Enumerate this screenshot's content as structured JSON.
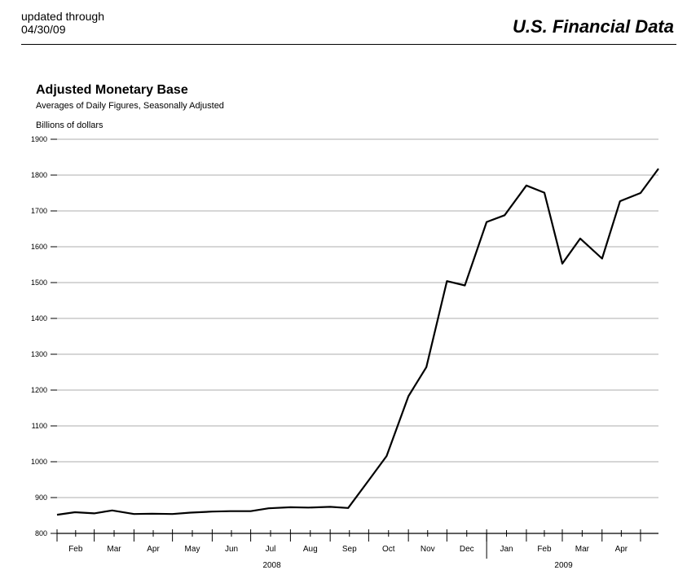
{
  "header": {
    "updated_line1": "updated through",
    "updated_line2": "04/30/09",
    "brand": "U.S. Financial Data"
  },
  "chart_data": {
    "type": "line",
    "title": "Adjusted Monetary Base",
    "subtitle": "Averages of Daily Figures, Seasonally Adjusted",
    "ylabel": "Billions of dollars",
    "xlabel": "",
    "ylim": [
      800,
      1900
    ],
    "y_ticks": [
      800,
      900,
      1000,
      1100,
      1200,
      1300,
      1400,
      1500,
      1600,
      1700,
      1800,
      1900
    ],
    "grid": true,
    "x_month_labels": [
      "Feb",
      "Mar",
      "Apr",
      "May",
      "Jun",
      "Jul",
      "Aug",
      "Sep",
      "Oct",
      "Nov",
      "Dec",
      "Jan",
      "Feb",
      "Mar",
      "Apr"
    ],
    "years": [
      {
        "label": "2008",
        "first_month_index": 0,
        "last_month_index": 10
      },
      {
        "label": "2009",
        "first_month_index": 11,
        "last_month_index": 14
      }
    ],
    "series": [
      {
        "values": [
          {
            "x": "2008-02-01",
            "y": 852
          },
          {
            "x": "2008-02-15",
            "y": 859
          },
          {
            "x": "2008-03-01",
            "y": 856
          },
          {
            "x": "2008-03-15",
            "y": 864
          },
          {
            "x": "2008-04-01",
            "y": 854
          },
          {
            "x": "2008-04-15",
            "y": 855
          },
          {
            "x": "2008-05-01",
            "y": 854
          },
          {
            "x": "2008-05-15",
            "y": 858
          },
          {
            "x": "2008-06-01",
            "y": 861
          },
          {
            "x": "2008-06-15",
            "y": 862
          },
          {
            "x": "2008-07-01",
            "y": 862
          },
          {
            "x": "2008-07-15",
            "y": 870
          },
          {
            "x": "2008-08-01",
            "y": 873
          },
          {
            "x": "2008-08-15",
            "y": 872
          },
          {
            "x": "2008-09-01",
            "y": 874
          },
          {
            "x": "2008-09-15",
            "y": 871
          },
          {
            "x": "2008-10-01",
            "y": 948
          },
          {
            "x": "2008-10-15",
            "y": 1016
          },
          {
            "x": "2008-11-01",
            "y": 1183
          },
          {
            "x": "2008-11-15",
            "y": 1264
          },
          {
            "x": "2008-12-01",
            "y": 1504
          },
          {
            "x": "2008-12-15",
            "y": 1492
          },
          {
            "x": "2009-01-01",
            "y": 1669
          },
          {
            "x": "2009-01-15",
            "y": 1688
          },
          {
            "x": "2009-02-01",
            "y": 1771
          },
          {
            "x": "2009-02-15",
            "y": 1751
          },
          {
            "x": "2009-03-01",
            "y": 1553
          },
          {
            "x": "2009-03-15",
            "y": 1623
          },
          {
            "x": "2009-04-01",
            "y": 1567
          },
          {
            "x": "2009-04-15",
            "y": 1727
          },
          {
            "x": "2009-05-01",
            "y": 1750
          },
          {
            "x": "2009-05-15",
            "y": 1818
          }
        ]
      }
    ]
  }
}
